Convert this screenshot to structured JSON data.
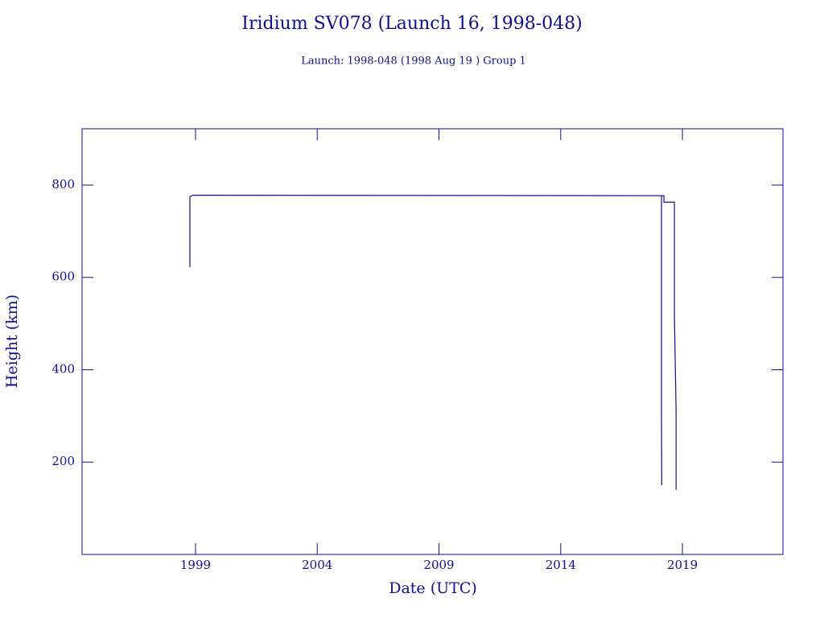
{
  "chart_data": {
    "type": "line",
    "title": "Iridium SV078 (Launch 16, 1998-048)",
    "subtitle": "Launch: 1998-048  (1998 Aug 19 )  Group 1",
    "x_label": "Date (UTC)",
    "y_label": "Height (km)",
    "x": [
      1998.77,
      1998.77,
      1998.9,
      2018.14,
      2018.14,
      2018.15,
      null,
      2018.15,
      2018.24,
      2018.24,
      2018.67,
      2018.67,
      2018.74,
      2018.74
    ],
    "series": [
      {
        "color": "#0f0f8f",
        "values": [
          622,
          775,
          778,
          777,
          300,
          150,
          null,
          777,
          777,
          763,
          763,
          520,
          310,
          140
        ]
      }
    ],
    "xlim": [
      1994.34,
      2023.13
    ],
    "xticks": [
      1999,
      2004,
      2009,
      2014,
      2019
    ],
    "ylim": [
      0,
      922
    ],
    "yticks": [
      200,
      400,
      600,
      800
    ],
    "axis_color": "#0f0f8f",
    "grid": false
  }
}
